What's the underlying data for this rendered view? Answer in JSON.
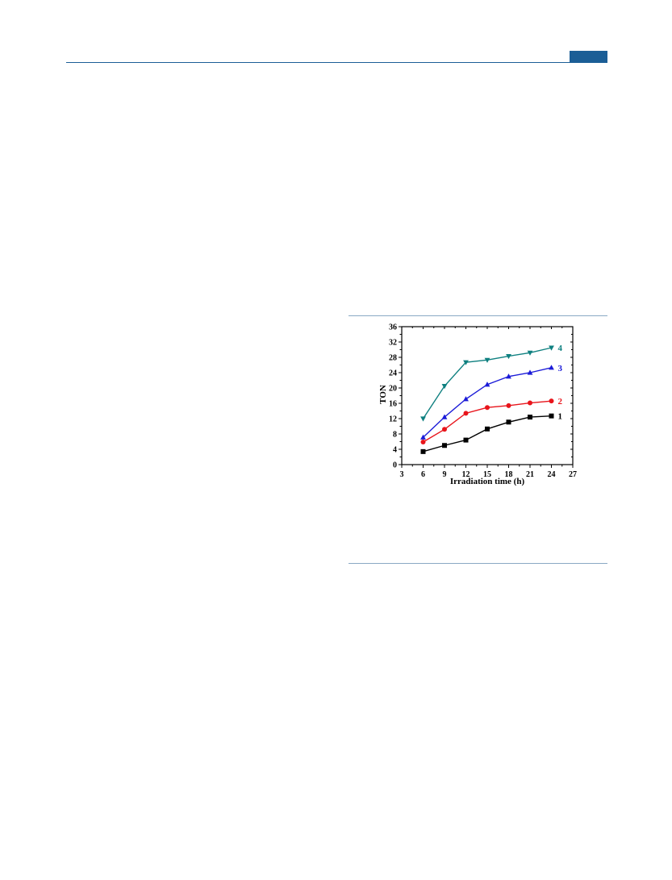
{
  "chart_data": {
    "type": "line",
    "xlabel": "Irradiation time (h)",
    "ylabel": "TON",
    "xlim": [
      3,
      27
    ],
    "ylim": [
      0,
      36
    ],
    "xticks": [
      3,
      6,
      9,
      12,
      15,
      18,
      21,
      24,
      27
    ],
    "yticks": [
      0,
      4,
      8,
      12,
      16,
      20,
      24,
      28,
      32,
      36
    ],
    "x": [
      6,
      9,
      12,
      15,
      18,
      21,
      24
    ],
    "grid": false,
    "series": [
      {
        "name": "1",
        "color": "#000000",
        "marker": "square",
        "values": [
          3.4,
          5.0,
          6.4,
          9.3,
          11.1,
          12.4,
          12.7
        ]
      },
      {
        "name": "2",
        "color": "#e8141b",
        "marker": "circle",
        "values": [
          5.9,
          9.2,
          13.4,
          14.9,
          15.4,
          16.1,
          16.6
        ]
      },
      {
        "name": "3",
        "color": "#1b1bd8",
        "marker": "triangle-up",
        "values": [
          7.1,
          12.4,
          17.1,
          20.9,
          23.0,
          24.0,
          25.3
        ]
      },
      {
        "name": "4",
        "color": "#0f8080",
        "marker": "triangle-down",
        "values": [
          12.0,
          20.5,
          26.7,
          27.3,
          28.3,
          29.2,
          30.5
        ]
      }
    ]
  }
}
